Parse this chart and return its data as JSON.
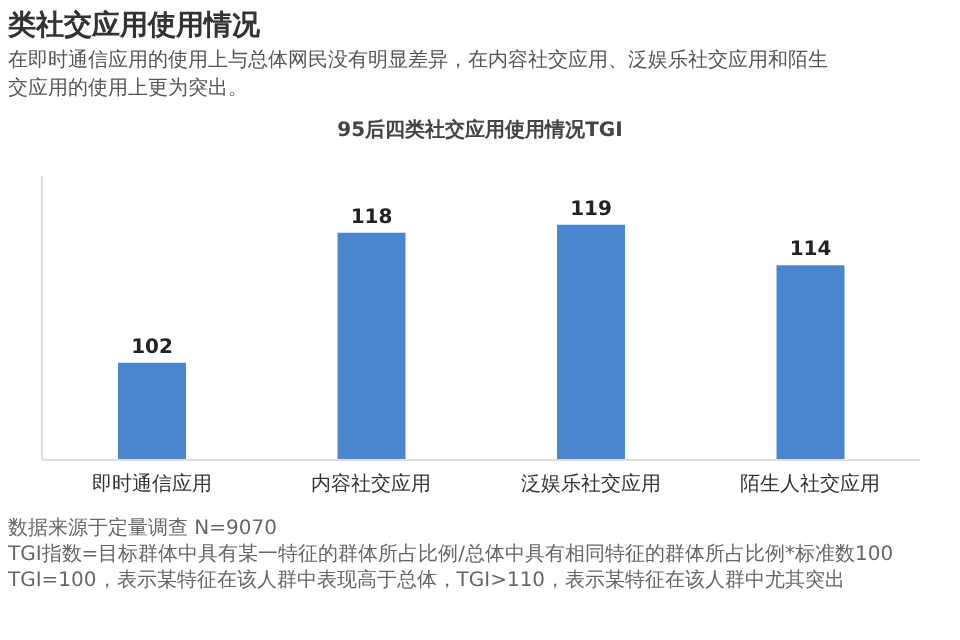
{
  "chart_data": {
    "type": "bar",
    "subtitle": "类社交应用使用情况",
    "title": "95后四类社交应用使用情况TGI",
    "categories": [
      "即时通信应用",
      "内容社交应用",
      "泛娱乐社交应用",
      "陌生人社交应用"
    ],
    "values": [
      102,
      118,
      119,
      114
    ],
    "color": "#4a86d0",
    "ylim": [
      90,
      125
    ],
    "data_labels": true,
    "grid": false,
    "legend": false,
    "annotations": [
      "在即时通信应用的使用上与总体网民没有明显差异，在内容社交应用、泛娱乐社交应用和陌生",
      "交应用的使用上更为突出。",
      "数据来源于定量调查 N=9070",
      "TGI指数=目标群体中具有某一特征的群体所占比例/总体中具有相同特征的群体所占比例*标准数100",
      "TGI=100，表示某特征在该人群中表现高于总体，TGI>110，表示某特征在该人群中尤其突出"
    ]
  }
}
